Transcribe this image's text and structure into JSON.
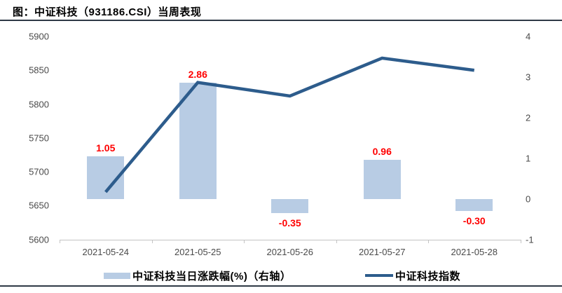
{
  "title": "图：中证科技（931186.CSI）当周表现",
  "colors": {
    "bar": "#b8cce4",
    "line": "#2d5c8c",
    "data_label": "#ff0000",
    "rule": "#2f3a46",
    "axis_line": "#c4c4c4",
    "tick_text": "#4a4a4a"
  },
  "chart_data": {
    "type": "combo",
    "title": "图：中证科技（931186.CSI）当周表现",
    "categories": [
      "2021-05-24",
      "2021-05-25",
      "2021-05-26",
      "2021-05-27",
      "2021-05-28"
    ],
    "series": [
      {
        "name": "中证科技当日涨跌幅(%)（右轴）",
        "type": "bar",
        "axis": "right",
        "values": [
          1.05,
          2.86,
          -0.35,
          0.96,
          -0.3
        ],
        "labels": [
          "1.05",
          "2.86",
          "-0.35",
          "0.96",
          "-0.30"
        ]
      },
      {
        "name": "中证科技指数",
        "type": "line",
        "axis": "left",
        "values": [
          5670,
          5832,
          5812,
          5868,
          5850
        ]
      }
    ],
    "left_axis": {
      "min": 5600,
      "max": 5900,
      "ticks": [
        "5900",
        "5850",
        "5800",
        "5750",
        "5700",
        "5650",
        "5600"
      ]
    },
    "right_axis": {
      "min": -1,
      "max": 4,
      "ticks": [
        "4",
        "3",
        "2",
        "1",
        "0",
        "-1"
      ]
    },
    "grid": false,
    "legend_position": "bottom"
  }
}
